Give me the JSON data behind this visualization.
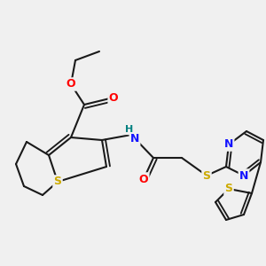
{
  "bg_color": "#f0f0f0",
  "bond_color": "#1a1a1a",
  "bond_width": 1.5,
  "colors": {
    "S": "#ccaa00",
    "O": "#ff0000",
    "N": "#1414ff",
    "H": "#008080",
    "bond": "#1a1a1a"
  },
  "figsize": [
    3.0,
    3.0
  ],
  "dpi": 100
}
